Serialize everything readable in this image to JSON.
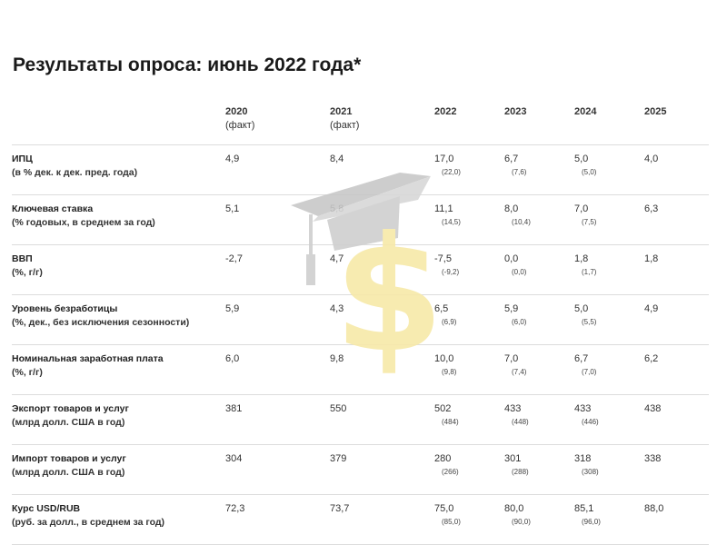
{
  "title": "Результаты опроса: июнь 2022 года*",
  "columns": [
    {
      "year": "2020",
      "note": "(факт)"
    },
    {
      "year": "2021",
      "note": "(факт)"
    },
    {
      "year": "2022",
      "note": ""
    },
    {
      "year": "2023",
      "note": ""
    },
    {
      "year": "2024",
      "note": ""
    },
    {
      "year": "2025",
      "note": ""
    }
  ],
  "rows": [
    {
      "name": "ИПЦ",
      "unit": "(в % дек. к дек. пред. года)",
      "values": [
        "4,9",
        "8,4",
        "17,0",
        "6,7",
        "5,0",
        "4,0"
      ],
      "prev": [
        "",
        "",
        "(22,0)",
        "(7,6)",
        "(5,0)",
        ""
      ]
    },
    {
      "name": "Ключевая ставка",
      "unit": "(% годовых, в среднем за год)",
      "values": [
        "5,1",
        "5,8",
        "11,1",
        "8,0",
        "7,0",
        "6,3"
      ],
      "prev": [
        "",
        "",
        "(14,5)",
        "(10,4)",
        "(7,5)",
        ""
      ]
    },
    {
      "name": "ВВП",
      "unit": "(%, г/г)",
      "values": [
        "-2,7",
        "4,7",
        "-7,5",
        "0,0",
        "1,8",
        "1,8"
      ],
      "prev": [
        "",
        "",
        "(-9,2)",
        "(0,0)",
        "(1,7)",
        ""
      ]
    },
    {
      "name": "Уровень безработицы",
      "unit": "(%, дек., без исключения сезонности)",
      "values": [
        "5,9",
        "4,3",
        "6,5",
        "5,9",
        "5,0",
        "4,9"
      ],
      "prev": [
        "",
        "",
        "(6,9)",
        "(6,0)",
        "(5,5)",
        ""
      ]
    },
    {
      "name": "Номинальная заработная плата",
      "unit": "(%, г/г)",
      "values": [
        "6,0",
        "9,8",
        "10,0",
        "7,0",
        "6,7",
        "6,2"
      ],
      "prev": [
        "",
        "",
        "(9,8)",
        "(7,4)",
        "(7,0)",
        ""
      ]
    },
    {
      "name": "Экспорт товаров и услуг",
      "unit": "(млрд долл. США в год)",
      "values": [
        "381",
        "550",
        "502",
        "433",
        "433",
        "438"
      ],
      "prev": [
        "",
        "",
        "(484)",
        "(448)",
        "(446)",
        ""
      ]
    },
    {
      "name": "Импорт товаров и услуг",
      "unit": "(млрд долл. США в год)",
      "values": [
        "304",
        "379",
        "280",
        "301",
        "318",
        "338"
      ],
      "prev": [
        "",
        "",
        "(266)",
        "(288)",
        "(308)",
        ""
      ]
    },
    {
      "name": "Курс USD/RUB",
      "unit": "(руб. за долл., в среднем за год)",
      "values": [
        "72,3",
        "73,7",
        "75,0",
        "80,0",
        "85,1",
        "88,0"
      ],
      "prev": [
        "",
        "",
        "(85,0)",
        "(90,0)",
        "(96,0)",
        ""
      ]
    }
  ],
  "watermark": {
    "icon": "graduation-cap-dollar-icon",
    "cap_color": "#c8c8c8",
    "dollar_color": "#f7e9a8"
  }
}
